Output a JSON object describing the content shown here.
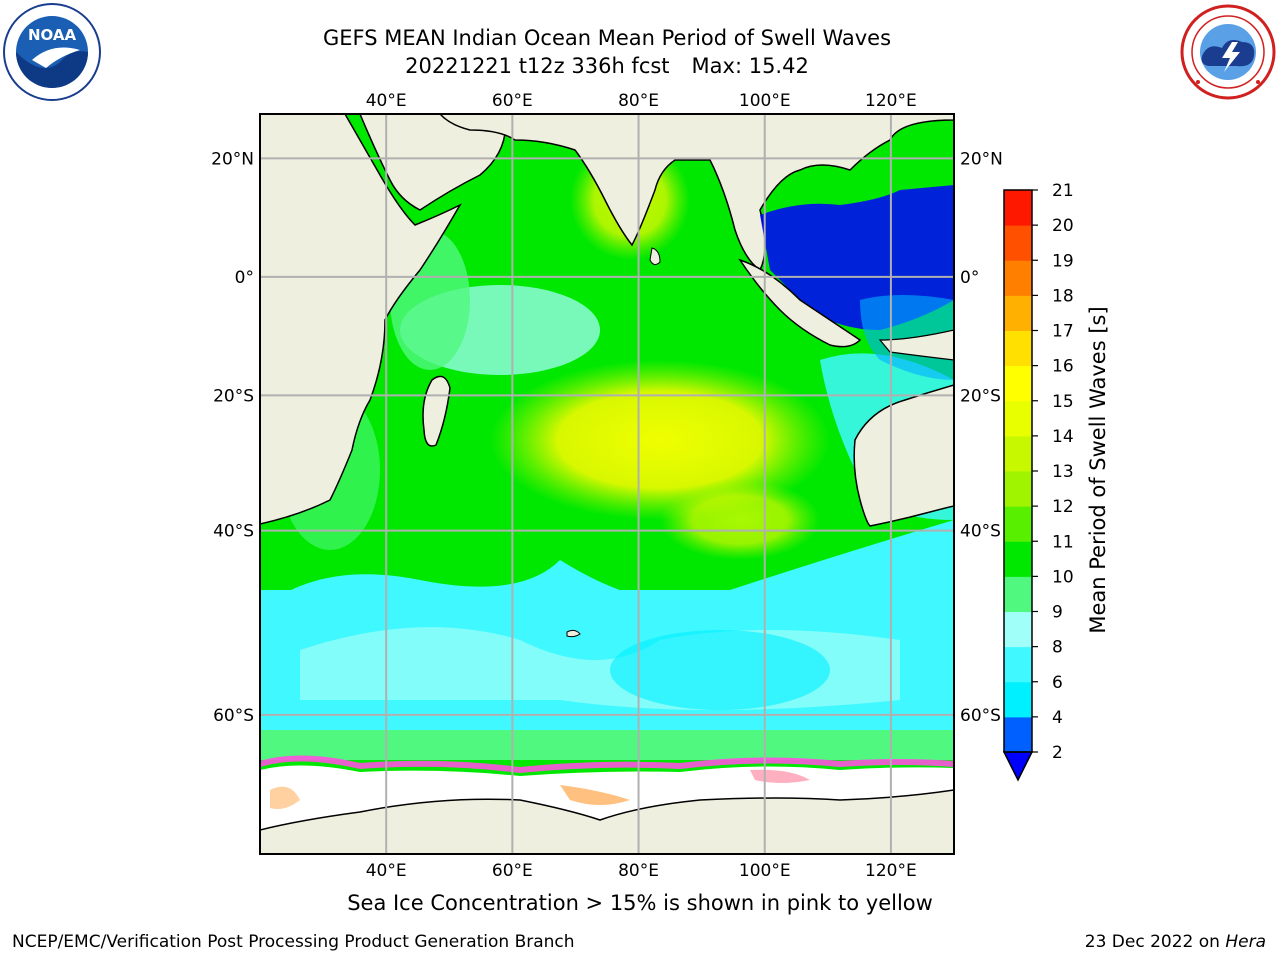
{
  "header": {
    "title_line1": "GEFS MEAN Indian Ocean Mean Period of Swell Waves",
    "title_run": "20221221 t12z 336h fcst",
    "title_max": "Max: 15.42"
  },
  "logos": {
    "left": "noaa-logo",
    "left_text": "NOAA",
    "right": "nws-logo"
  },
  "map": {
    "lon_ticks": [
      {
        "value": 40,
        "label": "40°E"
      },
      {
        "value": 60,
        "label": "60°E"
      },
      {
        "value": 80,
        "label": "80°E"
      },
      {
        "value": 100,
        "label": "100°E"
      },
      {
        "value": 120,
        "label": "120°E"
      }
    ],
    "lat_ticks": [
      {
        "value": 20,
        "label": "20°N"
      },
      {
        "value": 0,
        "label": "0°"
      },
      {
        "value": -20,
        "label": "20°S"
      },
      {
        "value": -40,
        "label": "40°S"
      },
      {
        "value": -60,
        "label": "60°S"
      }
    ],
    "lon_range": [
      20,
      130
    ],
    "lat_range": [
      -70,
      27
    ],
    "colors": {
      "land": "#efefdf",
      "grid": "#b0b0b0",
      "ice": "#ffffff"
    }
  },
  "colorbar": {
    "title": "Mean Period of Swell Waves [s]",
    "labels": [
      "2",
      "4",
      "6",
      "8",
      "9",
      "10",
      "11",
      "12",
      "13",
      "14",
      "15",
      "16",
      "17",
      "18",
      "19",
      "20",
      "21"
    ],
    "colors": [
      "#0060ff",
      "#00f0ff",
      "#40f8ff",
      "#a0fff8",
      "#50f880",
      "#00e800",
      "#58f000",
      "#a0f400",
      "#c8f800",
      "#e8ff00",
      "#ffff00",
      "#ffe000",
      "#ffb000",
      "#ff8000",
      "#ff5000",
      "#ff1800"
    ],
    "extend_color": "#0000ff"
  },
  "note": "Sea Ice Concentration > 15% is shown in pink to yellow",
  "footer": {
    "left": "NCEP/EMC/Verification Post Processing Product Generation Branch",
    "right_date": "23 Dec 2022 on",
    "right_host": "Hera"
  }
}
